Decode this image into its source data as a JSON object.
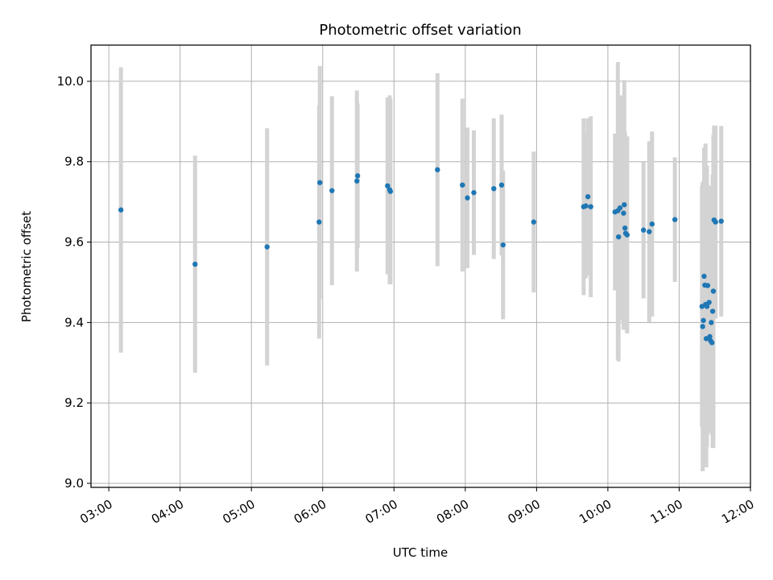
{
  "chart_data": {
    "type": "scatter",
    "title": "Photometric offset variation",
    "xlabel": "UTC time",
    "ylabel": "Photometric offset",
    "x_unit": "hours UTC",
    "xlim": [
      2.75,
      12.0
    ],
    "ylim": [
      8.99,
      10.09
    ],
    "x_ticks": [
      3,
      4,
      5,
      6,
      7,
      8,
      9,
      10,
      11,
      12
    ],
    "x_tick_labels": [
      "03:00",
      "04:00",
      "05:00",
      "06:00",
      "07:00",
      "08:00",
      "09:00",
      "10:00",
      "11:00",
      "12:00"
    ],
    "y_ticks": [
      9.0,
      9.2,
      9.4,
      9.6,
      9.8,
      10.0
    ],
    "y_tick_labels": [
      "9.0",
      "9.2",
      "9.4",
      "9.6",
      "9.8",
      "10.0"
    ],
    "grid": true,
    "colors": {
      "points": "#1f77b4",
      "error_bars": "#d3d3d3",
      "grid": "#b0b0b0"
    },
    "series": [
      {
        "x": [
          3.17,
          4.21,
          5.22,
          5.95,
          5.96,
          6.13,
          6.48,
          6.49,
          6.91,
          6.94,
          6.95,
          7.61,
          7.96,
          8.03,
          8.12,
          8.4,
          8.51,
          8.53,
          8.96,
          9.66,
          9.69,
          9.72,
          9.76,
          10.1,
          10.14,
          10.15,
          10.17,
          10.22,
          10.23,
          10.24,
          10.25,
          10.27,
          10.5,
          10.58,
          10.62,
          10.94,
          11.32,
          11.33,
          11.34,
          11.35,
          11.36,
          11.37,
          11.38,
          11.39,
          11.4,
          11.42,
          11.43,
          11.44,
          11.45,
          11.46,
          11.47,
          11.48,
          11.49,
          11.51,
          11.59
        ],
        "y": [
          9.68,
          9.545,
          9.588,
          9.65,
          9.748,
          9.728,
          9.752,
          9.765,
          9.74,
          9.73,
          9.726,
          9.78,
          9.742,
          9.71,
          9.723,
          9.733,
          9.742,
          9.593,
          9.65,
          9.688,
          9.69,
          9.713,
          9.688,
          9.675,
          9.678,
          9.613,
          9.685,
          9.672,
          9.693,
          9.635,
          9.622,
          9.618,
          9.63,
          9.626,
          9.645,
          9.656,
          9.44,
          9.39,
          9.405,
          9.515,
          9.493,
          9.445,
          9.36,
          9.44,
          9.492,
          9.45,
          9.365,
          9.355,
          9.4,
          9.35,
          9.428,
          9.478,
          9.655,
          9.65,
          9.652
        ],
        "yerr": [
          0.355,
          0.27,
          0.295,
          0.29,
          0.29,
          0.235,
          0.225,
          0.18,
          0.22,
          0.235,
          0.23,
          0.24,
          0.215,
          0.175,
          0.155,
          0.175,
          0.175,
          0.185,
          0.175,
          0.22,
          0.18,
          0.195,
          0.225,
          0.195,
          0.37,
          0.31,
          0.28,
          0.29,
          0.31,
          0.24,
          0.22,
          0.245,
          0.17,
          0.225,
          0.23,
          0.155,
          0.3,
          0.36,
          0.32,
          0.32,
          0.3,
          0.4,
          0.32,
          0.35,
          0.25,
          0.29,
          0.22,
          0.23,
          0.21,
          0.23,
          0.34,
          0.39,
          0.235,
          0.24,
          0.237
        ]
      }
    ]
  }
}
